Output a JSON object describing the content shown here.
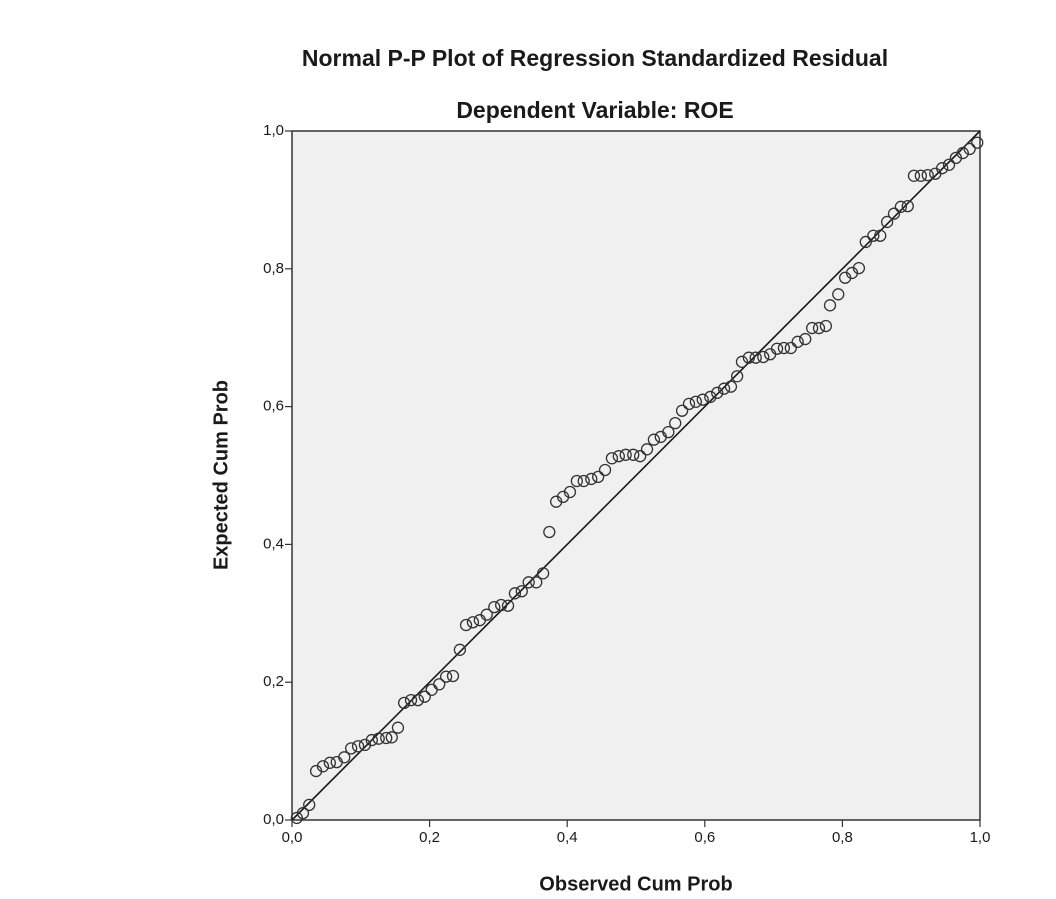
{
  "chart_data": {
    "type": "scatter",
    "title": "Normal P-P Plot of Regression Standardized Residual",
    "subtitle": "Dependent Variable: ROE",
    "x_label": "Observed Cum Prob",
    "y_label": "Expected Cum Prob",
    "xlim": [
      0,
      1
    ],
    "ylim": [
      0,
      1
    ],
    "xticks": [
      {
        "value": 0,
        "label": "0,0"
      },
      {
        "value": 0.2,
        "label": "0,2"
      },
      {
        "value": 0.4,
        "label": "0,4"
      },
      {
        "value": 0.6,
        "label": "0,6"
      },
      {
        "value": 0.8,
        "label": "0,8"
      },
      {
        "value": 1,
        "label": "1,0"
      }
    ],
    "yticks": [
      {
        "value": 0,
        "label": "0,0"
      },
      {
        "value": 0.2,
        "label": "0,2"
      },
      {
        "value": 0.4,
        "label": "0,4"
      },
      {
        "value": 0.6,
        "label": "0,6"
      },
      {
        "value": 0.8,
        "label": "0,8"
      },
      {
        "value": 1,
        "label": "1,0"
      }
    ],
    "color": "#333333",
    "reference_line": true,
    "x": [
      0.007,
      0.016,
      0.025,
      0.035,
      0.045,
      0.055,
      0.065,
      0.076,
      0.086,
      0.096,
      0.106,
      0.116,
      0.126,
      0.137,
      0.145,
      0.154,
      0.163,
      0.173,
      0.183,
      0.193,
      0.203,
      0.214,
      0.224,
      0.234,
      0.244,
      0.253,
      0.263,
      0.273,
      0.283,
      0.294,
      0.304,
      0.314,
      0.324,
      0.334,
      0.344,
      0.355,
      0.365,
      0.374,
      0.384,
      0.394,
      0.404,
      0.414,
      0.424,
      0.435,
      0.445,
      0.455,
      0.465,
      0.475,
      0.485,
      0.496,
      0.506,
      0.516,
      0.526,
      0.536,
      0.547,
      0.557,
      0.567,
      0.577,
      0.587,
      0.597,
      0.608,
      0.618,
      0.628,
      0.638,
      0.647,
      0.654,
      0.664,
      0.674,
      0.685,
      0.695,
      0.705,
      0.715,
      0.725,
      0.735,
      0.746,
      0.756,
      0.766,
      0.776,
      0.782,
      0.794,
      0.804,
      0.814,
      0.824,
      0.834,
      0.845,
      0.855,
      0.865,
      0.875,
      0.885,
      0.895,
      0.904,
      0.914,
      0.924,
      0.935,
      0.945,
      0.955,
      0.965,
      0.975,
      0.985,
      0.996
    ],
    "values": [
      0.003,
      0.01,
      0.022,
      0.071,
      0.078,
      0.083,
      0.084,
      0.091,
      0.104,
      0.107,
      0.109,
      0.116,
      0.118,
      0.119,
      0.12,
      0.134,
      0.17,
      0.174,
      0.174,
      0.179,
      0.189,
      0.197,
      0.208,
      0.209,
      0.247,
      0.283,
      0.287,
      0.29,
      0.298,
      0.309,
      0.312,
      0.311,
      0.329,
      0.332,
      0.345,
      0.345,
      0.358,
      0.418,
      0.462,
      0.469,
      0.476,
      0.492,
      0.492,
      0.495,
      0.498,
      0.508,
      0.525,
      0.528,
      0.53,
      0.53,
      0.528,
      0.538,
      0.552,
      0.556,
      0.563,
      0.576,
      0.594,
      0.604,
      0.607,
      0.61,
      0.614,
      0.62,
      0.626,
      0.629,
      0.644,
      0.665,
      0.671,
      0.671,
      0.672,
      0.676,
      0.684,
      0.685,
      0.685,
      0.694,
      0.698,
      0.714,
      0.714,
      0.717,
      0.747,
      0.763,
      0.787,
      0.794,
      0.801,
      0.839,
      0.848,
      0.848,
      0.868,
      0.88,
      0.89,
      0.891,
      0.935,
      0.935,
      0.936,
      0.938,
      0.946,
      0.951,
      0.961,
      0.968,
      0.974,
      0.983
    ]
  }
}
